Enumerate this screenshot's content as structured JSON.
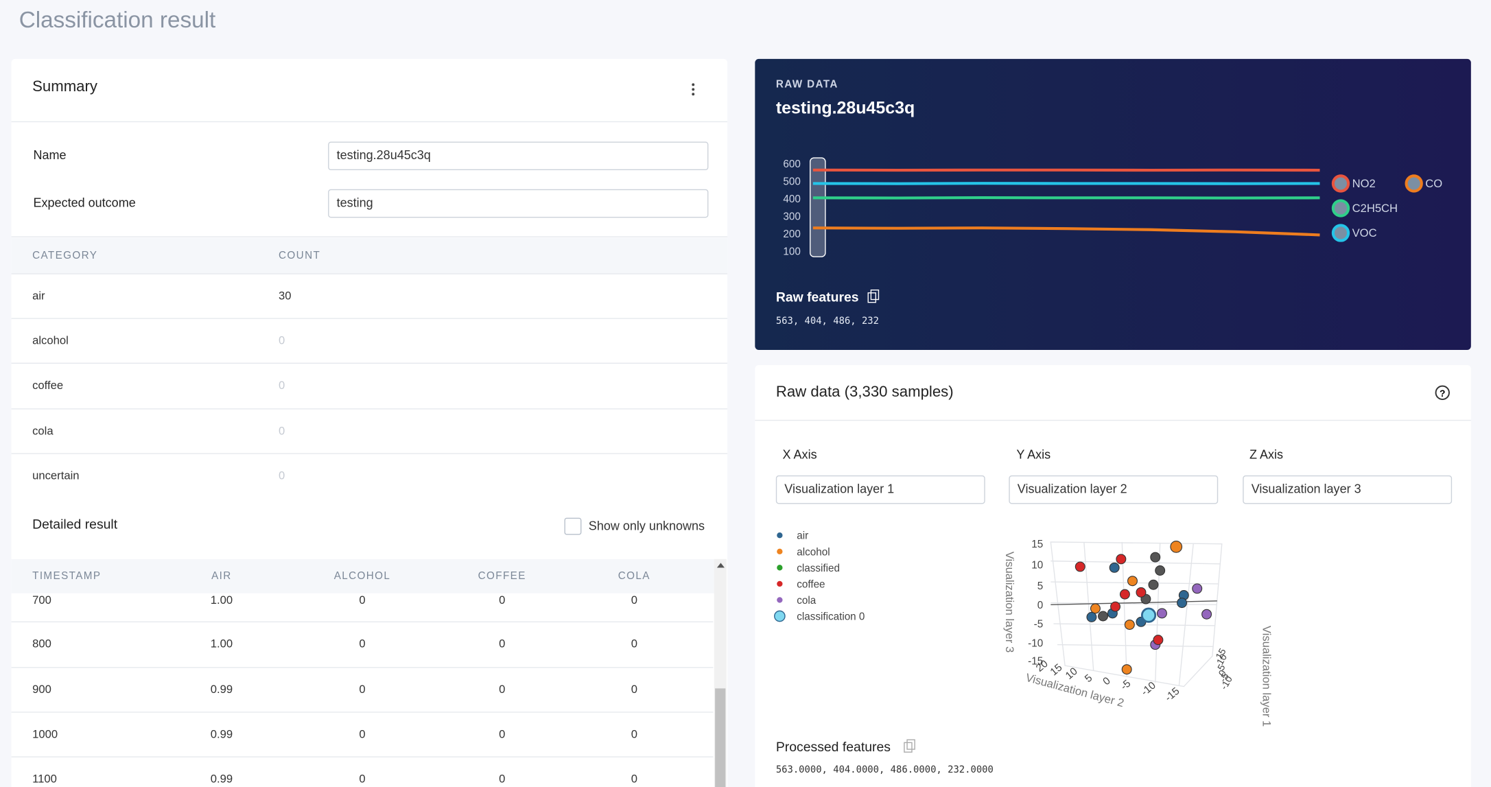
{
  "header": {
    "title": "Classification result"
  },
  "summary": {
    "title": "Summary",
    "fields": [
      {
        "label": "Name",
        "value": "testing.28u45c3q"
      },
      {
        "label": "Expected outcome",
        "value": "testing"
      }
    ],
    "table": {
      "columns": [
        "CATEGORY",
        "COUNT"
      ],
      "rows": [
        [
          "air",
          30
        ],
        [
          "alcohol",
          0
        ],
        [
          "coffee",
          0
        ],
        [
          "cola",
          0
        ],
        [
          "uncertain",
          0
        ]
      ]
    }
  },
  "detailed": {
    "title": "Detailed result",
    "checkbox_label": "Show only unknowns",
    "table": {
      "columns": [
        "TIMESTAMP",
        "AIR",
        "ALCOHOL",
        "COFFEE",
        "COLA"
      ],
      "rows": [
        [
          700,
          "1.00",
          0,
          0,
          0
        ],
        [
          800,
          "1.00",
          0,
          0,
          0
        ],
        [
          900,
          "0.99",
          0,
          0,
          0
        ],
        [
          1000,
          "0.99",
          0,
          0,
          0
        ],
        [
          1100,
          "0.99",
          0,
          0,
          0
        ]
      ]
    }
  },
  "raw_data": {
    "label": "RAW DATA",
    "name": "testing.28u45c3q",
    "chart": {
      "type": "line",
      "ylim": [
        70,
        620
      ],
      "yticks": [
        100,
        200,
        300,
        400,
        500,
        600
      ],
      "series": [
        {
          "name": "NO2",
          "color": "#e8553f",
          "values": [
            563,
            562,
            563,
            563,
            562,
            563,
            562
          ]
        },
        {
          "name": "CO",
          "color": "#ee7d1f",
          "values": [
            232,
            230,
            232,
            228,
            222,
            210,
            192
          ]
        },
        {
          "name": "C2H5CH",
          "color": "#2fcf8a",
          "values": [
            404,
            403,
            405,
            404,
            404,
            403,
            404
          ]
        },
        {
          "name": "VOC",
          "color": "#25c4e8",
          "values": [
            486,
            485,
            487,
            486,
            486,
            485,
            486
          ]
        }
      ]
    },
    "features_label": "Raw features",
    "features": "563, 404, 486, 232"
  },
  "explorer": {
    "title": "Raw data (3,330 samples)",
    "axes": [
      {
        "label": "X Axis",
        "value": "Visualization layer 1"
      },
      {
        "label": "Y Axis",
        "value": "Visualization layer 2"
      },
      {
        "label": "Z Axis",
        "value": "Visualization layer 3"
      }
    ],
    "legend": [
      {
        "name": "air",
        "color": "#2f6690"
      },
      {
        "name": "alcohol",
        "color": "#ee8420"
      },
      {
        "name": "classified",
        "color": "#2ca02c"
      },
      {
        "name": "coffee",
        "color": "#d62728"
      },
      {
        "name": "cola",
        "color": "#9467bd"
      },
      {
        "name": "classification 0",
        "color": "#7fd8f0"
      }
    ],
    "plot": {
      "z_title": "Visualization layer 3",
      "y_title": "Visualization layer 2",
      "x_title": "Visualization layer 1",
      "z_ticks": [
        15,
        10,
        5,
        0,
        -5,
        -10,
        -15
      ],
      "y_ticks": [
        20,
        15,
        10,
        5,
        0,
        -5,
        -10,
        -15
      ],
      "x_ticks": [
        15,
        10,
        5,
        0,
        -5,
        -10
      ]
    },
    "features_label": "Processed features",
    "features": "563.0000, 404.0000, 486.0000, 232.0000"
  }
}
